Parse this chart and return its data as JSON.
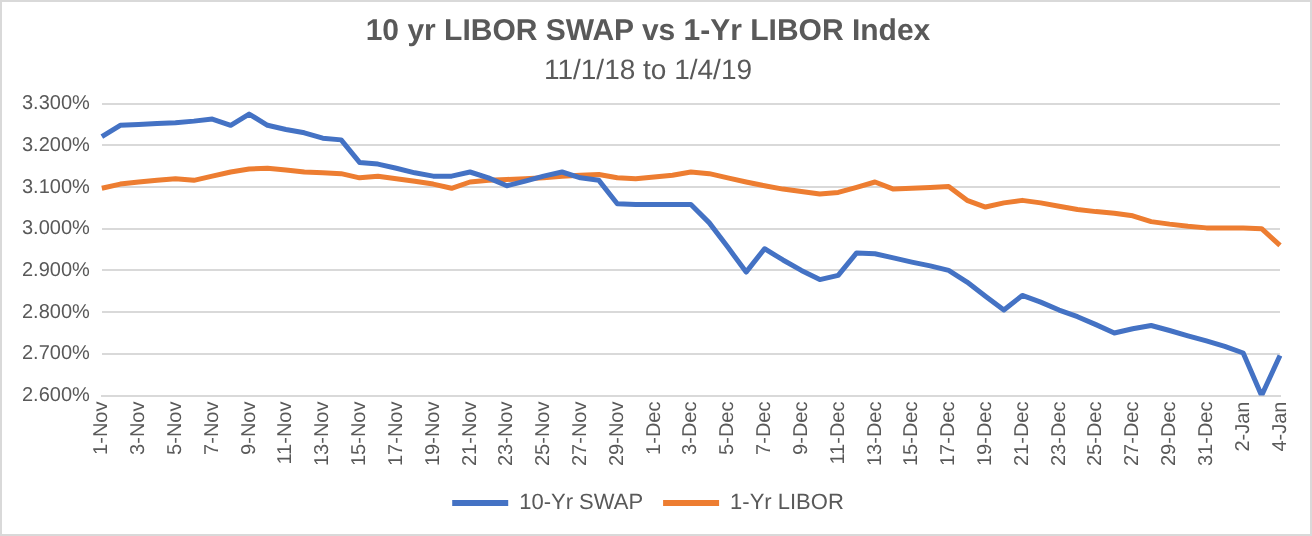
{
  "chart_data": {
    "type": "line",
    "title": "10 yr LIBOR SWAP vs 1-Yr LIBOR Index",
    "subtitle": "11/1/18 to 1/4/19",
    "categories": [
      "1-Nov",
      null,
      "3-Nov",
      null,
      "5-Nov",
      null,
      "7-Nov",
      null,
      "9-Nov",
      null,
      "11-Nov",
      null,
      "13-Nov",
      null,
      "15-Nov",
      null,
      "17-Nov",
      null,
      "19-Nov",
      null,
      "21-Nov",
      null,
      "23-Nov",
      null,
      "25-Nov",
      null,
      "27-Nov",
      null,
      "29-Nov",
      null,
      "1-Dec",
      null,
      "3-Dec",
      null,
      "5-Dec",
      null,
      "7-Dec",
      null,
      "9-Dec",
      null,
      "11-Dec",
      null,
      "13-Dec",
      null,
      "15-Dec",
      null,
      "17-Dec",
      null,
      "19-Dec",
      null,
      "21-Dec",
      null,
      "23-Dec",
      null,
      "25-Dec",
      null,
      "27-Dec",
      null,
      "29-Dec",
      null,
      "31-Dec",
      null,
      "2-Jan",
      null,
      "4-Jan"
    ],
    "series": [
      {
        "name": "10-Yr SWAP",
        "color": "#4472c4",
        "values": [
          3.221,
          3.248,
          3.25,
          3.252,
          3.254,
          3.258,
          3.263,
          3.248,
          3.275,
          3.248,
          3.238,
          3.23,
          3.217,
          3.213,
          3.159,
          3.155,
          3.145,
          3.134,
          3.126,
          3.126,
          3.136,
          3.122,
          3.103,
          3.114,
          3.126,
          3.136,
          3.122,
          3.116,
          3.06,
          3.058,
          3.058,
          3.058,
          3.058,
          3.014,
          2.956,
          2.896,
          2.952,
          2.925,
          2.9,
          2.878,
          2.888,
          2.942,
          2.94,
          2.93,
          2.92,
          2.911,
          2.9,
          2.872,
          2.838,
          2.805,
          2.84,
          2.824,
          2.805,
          2.789,
          2.77,
          2.75,
          2.76,
          2.768,
          2.756,
          2.743,
          2.731,
          2.718,
          2.702,
          2.6,
          2.696
        ]
      },
      {
        "name": "1-Yr LIBOR",
        "color": "#ed7d31",
        "values": [
          3.097,
          3.107,
          3.112,
          3.116,
          3.12,
          3.116,
          3.126,
          3.136,
          3.143,
          3.145,
          3.141,
          3.136,
          3.134,
          3.132,
          3.122,
          3.126,
          3.12,
          3.114,
          3.107,
          3.097,
          3.112,
          3.116,
          3.118,
          3.12,
          3.122,
          3.126,
          3.128,
          3.13,
          3.122,
          3.12,
          3.124,
          3.128,
          3.136,
          3.132,
          3.122,
          3.112,
          3.103,
          3.095,
          3.089,
          3.083,
          3.087,
          3.099,
          3.112,
          3.095,
          3.097,
          3.099,
          3.101,
          3.068,
          3.052,
          3.062,
          3.068,
          3.062,
          3.054,
          3.046,
          3.041,
          3.037,
          3.031,
          3.017,
          3.011,
          3.006,
          3.002,
          3.002,
          3.002,
          3.0,
          2.96
        ]
      }
    ],
    "ylim": [
      2.6,
      3.3
    ],
    "yticks": [
      {
        "value": 2.6,
        "label": "2.600%"
      },
      {
        "value": 2.7,
        "label": "2.700%"
      },
      {
        "value": 2.8,
        "label": "2.800%"
      },
      {
        "value": 2.9,
        "label": "2.900%"
      },
      {
        "value": 3.0,
        "label": "3.000%"
      },
      {
        "value": 3.1,
        "label": "3.100%"
      },
      {
        "value": 3.2,
        "label": "3.200%"
      },
      {
        "value": 3.3,
        "label": "3.300%"
      }
    ],
    "grid": "y",
    "legend": "bottom",
    "marker": "none",
    "line_style": "solid"
  }
}
